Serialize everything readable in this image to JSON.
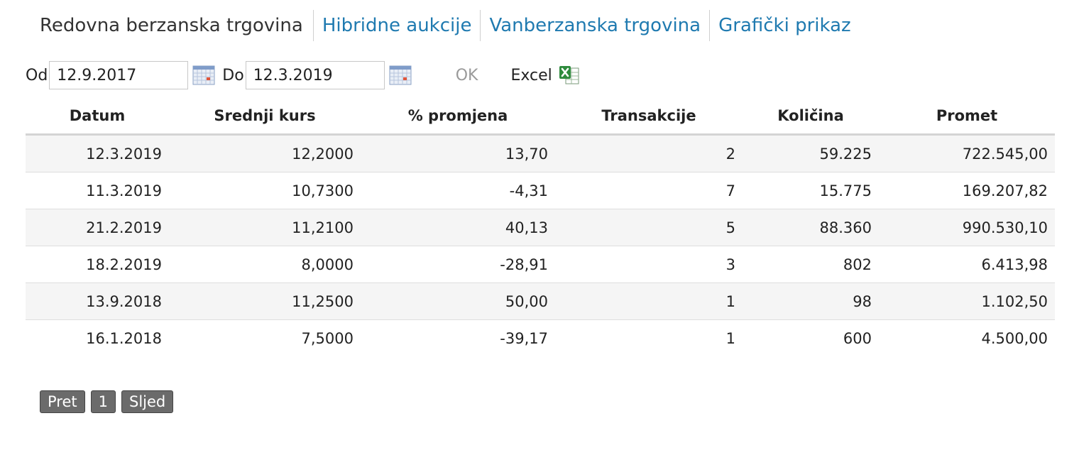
{
  "tabs": {
    "active": "Redovna berzanska trgovina",
    "links": [
      "Hibridne aukcije",
      "Vanberzanska trgovina",
      "Grafički prikaz"
    ]
  },
  "filters": {
    "from_label": "Od",
    "from_value": "12.9.2017",
    "to_label": "Do",
    "to_value": "12.3.2019",
    "ok_label": "OK",
    "excel_label": "Excel"
  },
  "table": {
    "headers": [
      "Datum",
      "Srednji kurs",
      "% promjena",
      "Transakcije",
      "Količina",
      "Promet"
    ],
    "rows": [
      [
        "12.3.2019",
        "12,2000",
        "13,70",
        "2",
        "59.225",
        "722.545,00"
      ],
      [
        "11.3.2019",
        "10,7300",
        "-4,31",
        "7",
        "15.775",
        "169.207,82"
      ],
      [
        "21.2.2019",
        "11,2100",
        "40,13",
        "5",
        "88.360",
        "990.530,10"
      ],
      [
        "18.2.2019",
        "8,0000",
        "-28,91",
        "3",
        "802",
        "6.413,98"
      ],
      [
        "13.9.2018",
        "11,2500",
        "50,00",
        "1",
        "98",
        "1.102,50"
      ],
      [
        "16.1.2018",
        "7,5000",
        "-39,17",
        "1",
        "600",
        "4.500,00"
      ]
    ]
  },
  "pager": {
    "prev_label": "Pret",
    "page_label": "1",
    "next_label": "Sljed"
  },
  "colors": {
    "link": "#1f7ab0",
    "row_alt": "#f5f5f5",
    "pager_bg": "#6b6b6b"
  }
}
